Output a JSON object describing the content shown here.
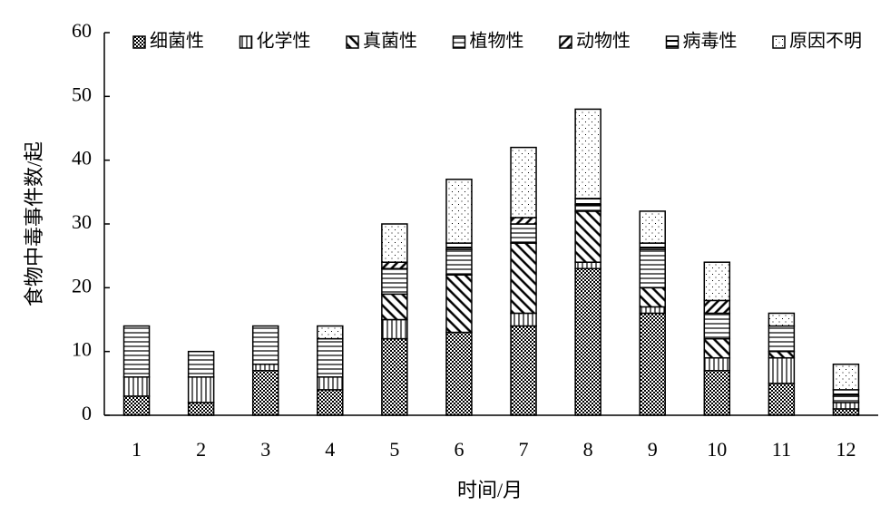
{
  "chart_data": {
    "type": "stacked_bar",
    "x_label": "时间/月",
    "y_label": "食物中毒事件数/起",
    "categories": [
      "1",
      "2",
      "3",
      "4",
      "5",
      "6",
      "7",
      "8",
      "9",
      "10",
      "11",
      "12"
    ],
    "series": [
      {
        "name": "细菌性",
        "color": "#000000",
        "values": [
          3,
          2,
          7,
          4,
          12,
          13,
          14,
          23,
          16,
          7,
          5,
          1
        ]
      },
      {
        "name": "化学性",
        "color": "#000000",
        "values": [
          3,
          4,
          1,
          2,
          3,
          0,
          2,
          1,
          1,
          2,
          4,
          1
        ]
      },
      {
        "name": "真菌性",
        "color": "#000000",
        "values": [
          0,
          0,
          0,
          0,
          4,
          9,
          11,
          8,
          3,
          3,
          1,
          0
        ]
      },
      {
        "name": "植物性",
        "color": "#000000",
        "values": [
          8,
          4,
          6,
          6,
          4,
          4,
          3,
          1,
          6,
          4,
          4,
          1
        ]
      },
      {
        "name": "动物性",
        "color": "#000000",
        "values": [
          0,
          0,
          0,
          0,
          1,
          0,
          1,
          0,
          0,
          2,
          0,
          0
        ]
      },
      {
        "name": "病毒性",
        "color": "#000000",
        "values": [
          0,
          0,
          0,
          0,
          0,
          1,
          0,
          1,
          1,
          0,
          0,
          1
        ]
      },
      {
        "name": "原因不明",
        "color": "#000000",
        "values": [
          0,
          0,
          0,
          2,
          6,
          10,
          11,
          14,
          5,
          6,
          2,
          4
        ]
      }
    ],
    "ylim": [
      0,
      60
    ],
    "yticks": [
      0,
      10,
      20,
      30,
      40,
      50,
      60
    ],
    "legend": "top"
  }
}
